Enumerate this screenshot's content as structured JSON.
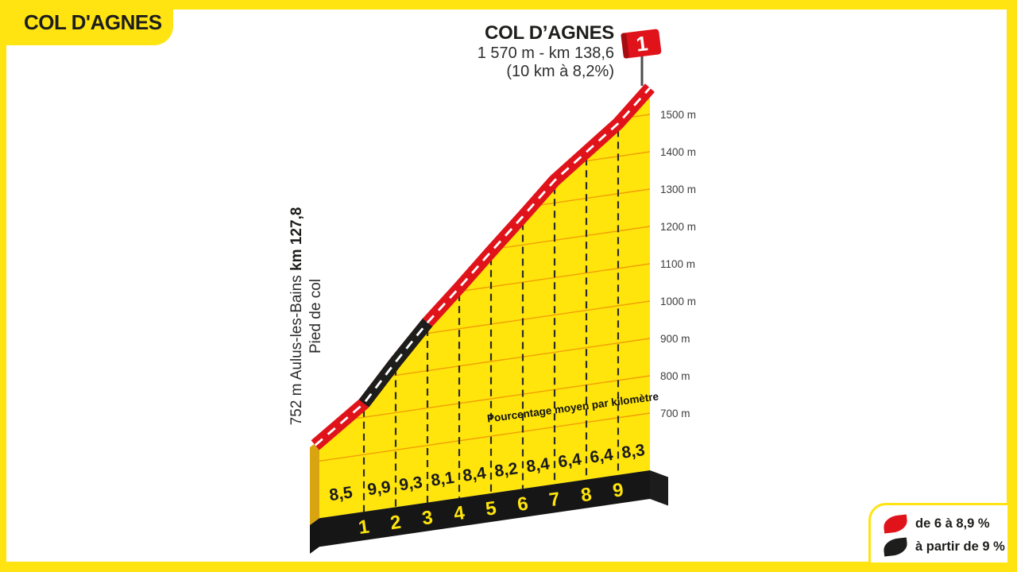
{
  "frame": {
    "color": "#FFE412"
  },
  "banner": {
    "label": "COL D'AGNES"
  },
  "summit_block": {
    "title": "COL D’AGNES",
    "line1": "1 570 m - km 138,6",
    "line2": "(10 km à 8,2%)"
  },
  "start_block": {
    "line1_prefix": "752 m Aulus-les-Bains ",
    "line1_bold": "km 127,8",
    "line2": "Pied de col"
  },
  "legend": {
    "items": [
      {
        "label": "de 6 à 8,9 %",
        "color": "#E0131B"
      },
      {
        "label": "à partir de 9 %",
        "color": "#1D1D1B"
      }
    ]
  },
  "chart_data": {
    "type": "area",
    "title": "COL D’AGNES",
    "subtitle": "1 570 m - km 138,6 (10 km à 8,2%)",
    "profile_note": "Pourcentage moyen par kilomètre",
    "start": {
      "elevation_m": 752,
      "km": "127,8",
      "place": "Aulus-les-Bains",
      "label": "Pied de col"
    },
    "summit": {
      "elevation_m": 1570,
      "km": "138,6",
      "category": "1"
    },
    "length_km": 10,
    "avg_gradient_pct": 8.2,
    "km_tick_labels": [
      "1",
      "2",
      "3",
      "4",
      "5",
      "6",
      "7",
      "8",
      "9"
    ],
    "gradients_pct": [
      8.5,
      9.9,
      9.3,
      8.1,
      8.4,
      8.2,
      8.4,
      6.4,
      6.4,
      8.3
    ],
    "gradient_labels": [
      "8,5",
      "9,9",
      "9,3",
      "8,1",
      "8,4",
      "8,2",
      "8,4",
      "6,4",
      "6,4",
      "8,3"
    ],
    "elevation_ticks": [
      {
        "label": "700 m",
        "value": 700
      },
      {
        "label": "800 m",
        "value": 800
      },
      {
        "label": "900 m",
        "value": 900
      },
      {
        "label": "1000 m",
        "value": 1000
      },
      {
        "label": "1100 m",
        "value": 1100
      },
      {
        "label": "1200 m",
        "value": 1200
      },
      {
        "label": "1300 m",
        "value": 1300
      },
      {
        "label": "1400 m",
        "value": 1400
      },
      {
        "label": "1500 m",
        "value": 1500
      }
    ],
    "color_rules": [
      {
        "label": "de 6 à 8,9 %",
        "min_pct": 6,
        "max_pct": 8.9,
        "color": "#E0131B"
      },
      {
        "label": "à partir de 9 %",
        "min_pct": 9,
        "color": "#1D1D1B"
      }
    ],
    "colors": {
      "face": "#FFE50C",
      "grid": "#F19F05",
      "road_red": "#E0131B",
      "road_black": "#1D1D1B",
      "base_band": "#161616",
      "side_gold": "#D8A511",
      "side_dark": "#141414",
      "centerline": "#FFFFFF",
      "pole": "#4D4D4D",
      "flag_text": "#FFFFFF"
    }
  }
}
